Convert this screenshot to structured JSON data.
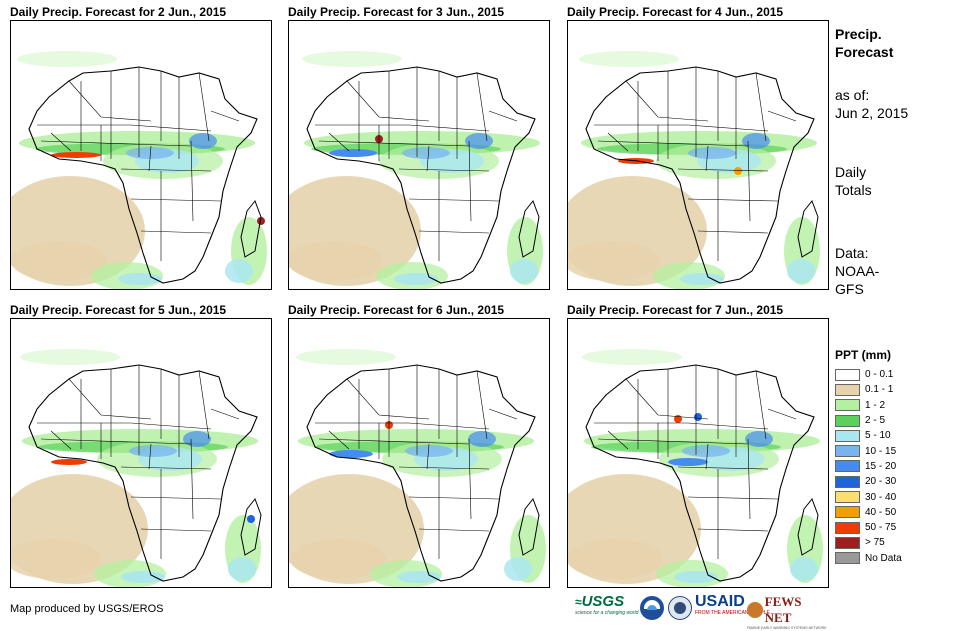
{
  "panels": [
    {
      "title": "Daily Precip. Forecast for 2 Jun., 2015"
    },
    {
      "title": "Daily Precip. Forecast for 3 Jun., 2015"
    },
    {
      "title": "Daily Precip. Forecast for 4 Jun., 2015"
    },
    {
      "title": "Daily Precip. Forecast for 5 Jun., 2015"
    },
    {
      "title": "Daily Precip. Forecast for 6 Jun., 2015"
    },
    {
      "title": "Daily Precip. Forecast for 7 Jun., 2015"
    }
  ],
  "sidebar": {
    "title_line1": "Precip.",
    "title_line2": "Forecast",
    "asof_line1": "as of:",
    "asof_line2": "Jun 2, 2015",
    "totals_line1": "Daily",
    "totals_line2": "Totals",
    "data_line1": "Data:",
    "data_line2": "NOAA-",
    "data_line3": "GFS"
  },
  "legend": {
    "title": "PPT (mm)",
    "items": [
      {
        "label": "0 - 0.1",
        "color": "#ffffff"
      },
      {
        "label": "0.1 - 1",
        "color": "#e6d3ad"
      },
      {
        "label": "1 - 2",
        "color": "#b4f0a0"
      },
      {
        "label": "2 - 5",
        "color": "#5ad25a"
      },
      {
        "label": "5 - 10",
        "color": "#aae6f0"
      },
      {
        "label": "10 - 15",
        "color": "#78b4f0"
      },
      {
        "label": "15 - 20",
        "color": "#468cf0"
      },
      {
        "label": "20 - 30",
        "color": "#1e64dc"
      },
      {
        "label": "30 - 40",
        "color": "#fadc78"
      },
      {
        "label": "40 - 50",
        "color": "#f0a000"
      },
      {
        "label": "50 - 75",
        "color": "#f03c00"
      },
      {
        "label": "> 75",
        "color": "#a01e1e"
      },
      {
        "label": "No Data",
        "color": "#999999"
      }
    ]
  },
  "footer": {
    "text": "Map produced by USGS/EROS"
  },
  "logos": {
    "usgs": "USGS",
    "usgs_tagline": "science for a changing world",
    "usaid": "USAID",
    "usaid_tagline": "FROM THE AMERICAN PEOPLE",
    "fews": "FEWS NET",
    "fews_tagline": "FAMINE EARLY WARNING SYSTEMS NETWORK"
  }
}
